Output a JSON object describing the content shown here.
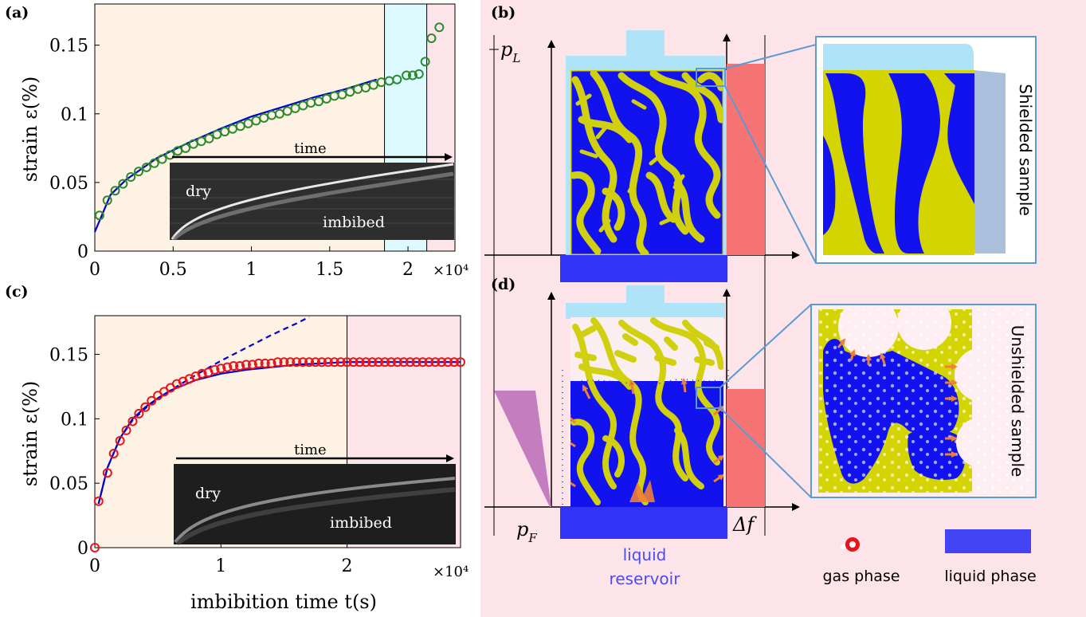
{
  "panels": {
    "a": "(a)",
    "b": "(b)",
    "c": "(c)",
    "d": "(d)"
  },
  "colors": {
    "blue": "#0000ff",
    "yellow": "#d4d400",
    "cream": "#fdf2e3",
    "pink": "#fde4e9",
    "cyan": "#dcfaff",
    "green": "#2b8a2b",
    "red": "#e8141c",
    "salmon": "#f77474",
    "purple": "#c47ec0",
    "cap": "#aee3f8"
  },
  "axis_a": {
    "ylabel": "strain ε(%)",
    "multiplier": "×10⁴",
    "yticks": [
      "0",
      "0.05",
      "0.1",
      "0.15"
    ],
    "xticks": [
      "0",
      "0.5",
      "1",
      "1.5",
      "2"
    ]
  },
  "axis_c": {
    "ylabel": "strain ε(%)",
    "xlabel": "imbibition time t(s)",
    "multiplier": "×10⁴",
    "yticks": [
      "0",
      "0.05",
      "0.1",
      "0.15"
    ],
    "xticks": [
      "0",
      "1",
      "2"
    ]
  },
  "inset_a": {
    "time": "time",
    "dry": "dry",
    "imbibed": "imbibed"
  },
  "inset_c": {
    "time": "time",
    "dry": "dry",
    "imbibed": "imbibed"
  },
  "schematic": {
    "pL": "p",
    "pL_sub": "L",
    "pF": "p",
    "pF_sub": "F",
    "df": "Δf",
    "reservoir_1": "liquid",
    "reservoir_2": "reservoir",
    "shielded": "Shielded sample",
    "unshielded": "Unshielded sample",
    "gas": "gas phase",
    "liquid": "liquid phase"
  },
  "chart_data": [
    {
      "type": "scatter",
      "panel": "a",
      "ylabel": "strain ε(%)",
      "xlim": [
        0,
        23000
      ],
      "ylim": [
        0,
        0.18
      ],
      "regions": [
        {
          "from": 0,
          "to": 18500,
          "color": "#fdf2e3"
        },
        {
          "from": 18500,
          "to": 21200,
          "color": "#dcfaff"
        },
        {
          "from": 21200,
          "to": 23000,
          "color": "#fde4e9"
        }
      ],
      "series": [
        {
          "marker": "circle",
          "color": "#2b8a2b",
          "x": [
            300,
            800,
            1300,
            1800,
            2300,
            2800,
            3300,
            3800,
            4300,
            4800,
            5300,
            5800,
            6300,
            6800,
            7300,
            7800,
            8300,
            8800,
            9300,
            9800,
            10300,
            10800,
            11300,
            11800,
            12300,
            12800,
            13300,
            13800,
            14300,
            14800,
            15300,
            15800,
            16300,
            16800,
            17300,
            17800,
            18300,
            18800,
            19300,
            19900,
            20300,
            20700,
            21100,
            21500,
            22000
          ],
          "y": [
            0.026,
            0.037,
            0.044,
            0.049,
            0.054,
            0.058,
            0.061,
            0.064,
            0.067,
            0.07,
            0.073,
            0.075,
            0.078,
            0.08,
            0.082,
            0.085,
            0.087,
            0.089,
            0.091,
            0.093,
            0.095,
            0.097,
            0.099,
            0.1,
            0.102,
            0.104,
            0.106,
            0.108,
            0.109,
            0.111,
            0.113,
            0.114,
            0.116,
            0.118,
            0.119,
            0.121,
            0.123,
            0.124,
            0.125,
            0.128,
            0.128,
            0.129,
            0.138,
            0.155,
            0.163
          ]
        },
        {
          "line": "fit",
          "color": "#0000cc",
          "x": [
            0,
            1000,
            2000,
            4000,
            6000,
            8000,
            10000,
            12000,
            14000,
            16000,
            18000
          ],
          "y": [
            0.014,
            0.041,
            0.052,
            0.068,
            0.079,
            0.089,
            0.098,
            0.105,
            0.112,
            0.118,
            0.125
          ]
        }
      ]
    },
    {
      "type": "scatter",
      "panel": "c",
      "xlabel": "imbibition time t(s)",
      "ylabel": "strain ε(%)",
      "xlim": [
        0,
        29000
      ],
      "ylim": [
        0,
        0.18
      ],
      "regions": [
        {
          "from": 0,
          "to": 20000,
          "color": "#fdf2e3"
        },
        {
          "from": 20000,
          "to": 29000,
          "color": "#fde4e9"
        }
      ],
      "series": [
        {
          "marker": "circle",
          "color": "#e8141c",
          "x": [
            0,
            300,
            1000,
            1500,
            2000,
            2500,
            3000,
            3500,
            4000,
            4500,
            5000,
            5500,
            6000,
            6500,
            7000,
            7500,
            8000,
            8500,
            9000,
            9500,
            10000,
            10500,
            11000,
            11500,
            12000,
            12500,
            13000,
            13500,
            14000,
            14500,
            15000,
            15500,
            16000,
            16500,
            17000,
            17500,
            18000,
            18500,
            19000,
            19500,
            20000,
            20500,
            21000,
            21500,
            22000,
            22500,
            23000,
            23500,
            24000,
            24500,
            25000,
            25500,
            26000,
            26500,
            27000,
            27500,
            28000,
            28500,
            29000
          ],
          "y": [
            0,
            0.036,
            0.058,
            0.073,
            0.083,
            0.091,
            0.098,
            0.104,
            0.109,
            0.114,
            0.118,
            0.121,
            0.124,
            0.127,
            0.129,
            0.131,
            0.133,
            0.135,
            0.136,
            0.138,
            0.139,
            0.14,
            0.141,
            0.141,
            0.142,
            0.142,
            0.143,
            0.143,
            0.143,
            0.144,
            0.144,
            0.144,
            0.144,
            0.144,
            0.144,
            0.144,
            0.144,
            0.144,
            0.144,
            0.144,
            0.144,
            0.144,
            0.144,
            0.144,
            0.144,
            0.144,
            0.144,
            0.144,
            0.144,
            0.144,
            0.144,
            0.144,
            0.144,
            0.144,
            0.144,
            0.144,
            0.144,
            0.144,
            0.144
          ]
        },
        {
          "line": "fit",
          "color": "#0000cc",
          "x": [
            300,
            1000,
            2000,
            3000,
            4000,
            5000,
            6000,
            8000,
            10000,
            12000,
            14000,
            16000,
            18000,
            20000,
            24000,
            29000
          ],
          "y": [
            0.034,
            0.062,
            0.085,
            0.1,
            0.109,
            0.116,
            0.122,
            0.13,
            0.135,
            0.138,
            0.14,
            0.142,
            0.143,
            0.144,
            0.144,
            0.144
          ]
        },
        {
          "line": "dashed",
          "color": "#0000cc",
          "x": [
            300,
            1000,
            2000,
            3000,
            4000,
            5000,
            6000,
            8000,
            10000,
            12000,
            14000,
            16000,
            17000
          ],
          "y": [
            0.034,
            0.062,
            0.085,
            0.099,
            0.108,
            0.116,
            0.122,
            0.134,
            0.145,
            0.155,
            0.165,
            0.174,
            0.179
          ]
        }
      ]
    }
  ]
}
